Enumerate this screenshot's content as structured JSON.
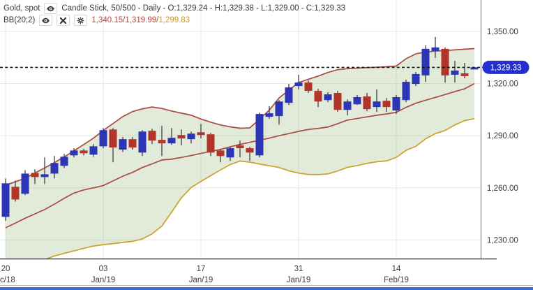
{
  "header": {
    "instrument": "Gold, spot",
    "series_info": "Candle Stick, 50/500 - Daily - O:1,329.24 - H:1,329.38 - L:1,329.00 - C:1,329.33",
    "indicator": {
      "name": "BB(20;2)",
      "separator": "/",
      "values": [
        {
          "text": "1,340.15",
          "color": "#b8463c"
        },
        {
          "text": "1,319.99",
          "color": "#b8463c"
        },
        {
          "text": "1,299.83",
          "color": "#c49a2c"
        }
      ]
    }
  },
  "price_axis": {
    "current_price_label": "1,329.33",
    "badge_color": "#2330cf",
    "badge_text_color": "#ffffff",
    "ticks": [
      {
        "price": 1350,
        "label": "1,350.00"
      },
      {
        "price": 1320,
        "label": "1,320.00"
      },
      {
        "price": 1290,
        "label": "1,290.00"
      },
      {
        "price": 1260,
        "label": "1,260.00"
      },
      {
        "price": 1230,
        "label": "1,230.00"
      }
    ]
  },
  "time_axis": {
    "ticks": [
      {
        "bar": 0,
        "day": "20",
        "month": "c/18",
        "clip_left": true
      },
      {
        "bar": 10,
        "day": "03",
        "month": "Jan/19"
      },
      {
        "bar": 20,
        "day": "17",
        "month": "Jan/19"
      },
      {
        "bar": 30,
        "day": "31",
        "month": "Jan/19"
      },
      {
        "bar": 40,
        "day": "14",
        "month": "Feb/19"
      }
    ]
  },
  "chart_data": {
    "type": "candlestick",
    "title": "Gold, spot",
    "interval": "Daily",
    "visible_bars": "50/500",
    "indicator": "BB(20;2)",
    "last_ohlc": {
      "open": 1329.24,
      "high": 1329.38,
      "low": 1329.0,
      "close": 1329.33
    },
    "bb_current": {
      "upper": 1340.15,
      "middle": 1319.99,
      "lower": 1299.83
    },
    "current_price": 1329.33,
    "ylim": [
      1219,
      1368
    ],
    "grid": true,
    "columns": [
      "open",
      "high",
      "low",
      "close"
    ],
    "candles": [
      [
        1243.3,
        1265.4,
        1240.9,
        1262.6
      ],
      [
        1260.6,
        1264.2,
        1252.1,
        1253.3
      ],
      [
        1256.6,
        1270.2,
        1255.8,
        1268.2
      ],
      [
        1268.6,
        1270.6,
        1262.2,
        1266.2
      ],
      [
        1266.2,
        1277.5,
        1262.2,
        1267.8
      ],
      [
        1268.2,
        1278.3,
        1265.4,
        1274.3
      ],
      [
        1272.7,
        1279.5,
        1271.4,
        1277.9
      ],
      [
        1278.7,
        1282.8,
        1277.5,
        1281.5
      ],
      [
        1281.5,
        1282.4,
        1278.7,
        1279.9
      ],
      [
        1279.1,
        1285.2,
        1277.9,
        1283.9
      ],
      [
        1283.9,
        1294.4,
        1282.8,
        1293.2
      ],
      [
        1293.6,
        1294.4,
        1274.7,
        1283.2
      ],
      [
        1282.0,
        1289.2,
        1280.7,
        1288.0
      ],
      [
        1288.0,
        1289.2,
        1281.9,
        1283.2
      ],
      [
        1280.3,
        1293.2,
        1278.3,
        1292.4
      ],
      [
        1292.8,
        1294.0,
        1285.2,
        1287.2
      ],
      [
        1287.6,
        1295.6,
        1278.3,
        1285.6
      ],
      [
        1285.6,
        1294.4,
        1284.8,
        1288.8
      ],
      [
        1290.4,
        1293.6,
        1284.4,
        1288.4
      ],
      [
        1288.0,
        1292.4,
        1285.6,
        1291.2
      ],
      [
        1292.0,
        1296.8,
        1288.4,
        1290.4
      ],
      [
        1290.8,
        1291.6,
        1278.3,
        1280.3
      ],
      [
        1281.5,
        1282.4,
        1274.7,
        1278.3
      ],
      [
        1277.5,
        1283.6,
        1275.5,
        1282.8
      ],
      [
        1284.4,
        1287.2,
        1277.5,
        1282.8
      ],
      [
        1282.8,
        1283.6,
        1275.5,
        1280.3
      ],
      [
        1278.7,
        1303.3,
        1277.5,
        1302.5
      ],
      [
        1300.9,
        1307.0,
        1299.7,
        1302.9
      ],
      [
        1301.3,
        1310.5,
        1296.4,
        1309.7
      ],
      [
        1308.9,
        1319.8,
        1307.7,
        1317.8
      ],
      [
        1318.6,
        1325.1,
        1316.6,
        1320.6
      ],
      [
        1320.6,
        1321.8,
        1314.6,
        1315.8
      ],
      [
        1315.8,
        1317.0,
        1306.5,
        1309.7
      ],
      [
        1310.5,
        1315.0,
        1309.3,
        1313.8
      ],
      [
        1314.6,
        1315.8,
        1303.7,
        1304.9
      ],
      [
        1304.9,
        1310.9,
        1301.7,
        1309.7
      ],
      [
        1308.1,
        1313.4,
        1307.7,
        1312.2
      ],
      [
        1312.6,
        1314.6,
        1304.1,
        1305.3
      ],
      [
        1306.5,
        1316.6,
        1303.7,
        1309.7
      ],
      [
        1310.1,
        1311.7,
        1303.7,
        1306.5
      ],
      [
        1304.5,
        1313.4,
        1302.5,
        1312.2
      ],
      [
        1310.5,
        1322.2,
        1309.3,
        1321.0
      ],
      [
        1319.8,
        1326.7,
        1318.6,
        1325.5
      ],
      [
        1324.7,
        1342.0,
        1321.0,
        1340.0
      ],
      [
        1338.8,
        1346.8,
        1334.7,
        1340.8
      ],
      [
        1340.0,
        1340.8,
        1320.6,
        1324.7
      ],
      [
        1325.1,
        1333.1,
        1320.6,
        1327.5
      ],
      [
        1325.9,
        1331.9,
        1323.0,
        1324.3
      ],
      [
        1329.24,
        1329.38,
        1329.0,
        1329.33
      ]
    ],
    "bands": {
      "upper": [
        1261.5,
        1263.5,
        1265.5,
        1268.5,
        1271.5,
        1274.5,
        1277.8,
        1281.3,
        1284.9,
        1288.6,
        1293.0,
        1297.0,
        1301.0,
        1303.9,
        1305.5,
        1306.5,
        1305.7,
        1304.2,
        1303.0,
        1301.8,
        1299.6,
        1297.8,
        1296.2,
        1295.1,
        1294.3,
        1294.5,
        1299.5,
        1304.7,
        1311.7,
        1316.2,
        1320.6,
        1322.5,
        1324.3,
        1326.4,
        1328.0,
        1328.6,
        1328.9,
        1329.2,
        1329.4,
        1329.7,
        1330.1,
        1334.3,
        1337.1,
        1338.2,
        1338.7,
        1339.0,
        1339.4,
        1339.8,
        1340.15
      ],
      "middle": [
        1237.0,
        1239.7,
        1242.5,
        1245.0,
        1247.5,
        1250.6,
        1254.0,
        1257.0,
        1258.8,
        1260.0,
        1261.3,
        1264.0,
        1266.7,
        1268.9,
        1271.7,
        1273.8,
        1276.0,
        1276.5,
        1277.5,
        1278.6,
        1279.8,
        1281.0,
        1282.1,
        1283.6,
        1285.0,
        1286.2,
        1287.4,
        1288.6,
        1290.0,
        1291.2,
        1292.5,
        1293.6,
        1294.2,
        1295.0,
        1296.9,
        1299.0,
        1299.9,
        1300.8,
        1301.8,
        1302.5,
        1303.5,
        1306.3,
        1308.7,
        1310.4,
        1312.0,
        1313.7,
        1315.4,
        1317.0,
        1319.99
      ],
      "lower": [
        1212.0,
        1214.0,
        1215.6,
        1217.3,
        1218.7,
        1220.8,
        1222.3,
        1223.7,
        1225.2,
        1226.5,
        1227.3,
        1227.9,
        1228.6,
        1229.2,
        1230.6,
        1233.5,
        1238.0,
        1246.0,
        1254.3,
        1260.2,
        1263.7,
        1267.0,
        1270.3,
        1273.4,
        1275.4,
        1274.8,
        1273.7,
        1272.7,
        1271.7,
        1269.8,
        1268.5,
        1267.7,
        1267.6,
        1268.0,
        1269.7,
        1271.8,
        1272.8,
        1274.1,
        1275.0,
        1275.5,
        1277.5,
        1281.6,
        1283.9,
        1288.2,
        1291.2,
        1293.0,
        1296.2,
        1298.7,
        1299.83
      ]
    },
    "colors": {
      "up": "#2b35b5",
      "down": "#b13529",
      "wick": "#4d4d4d",
      "band_line": "#a94b41",
      "lower_band_line": "#c9a227",
      "band_fill": "rgba(150,180,120,0.28)",
      "grid": "#e6e6e6",
      "axis_text": "#3d3d3d",
      "dashed_line": "#141414"
    }
  }
}
